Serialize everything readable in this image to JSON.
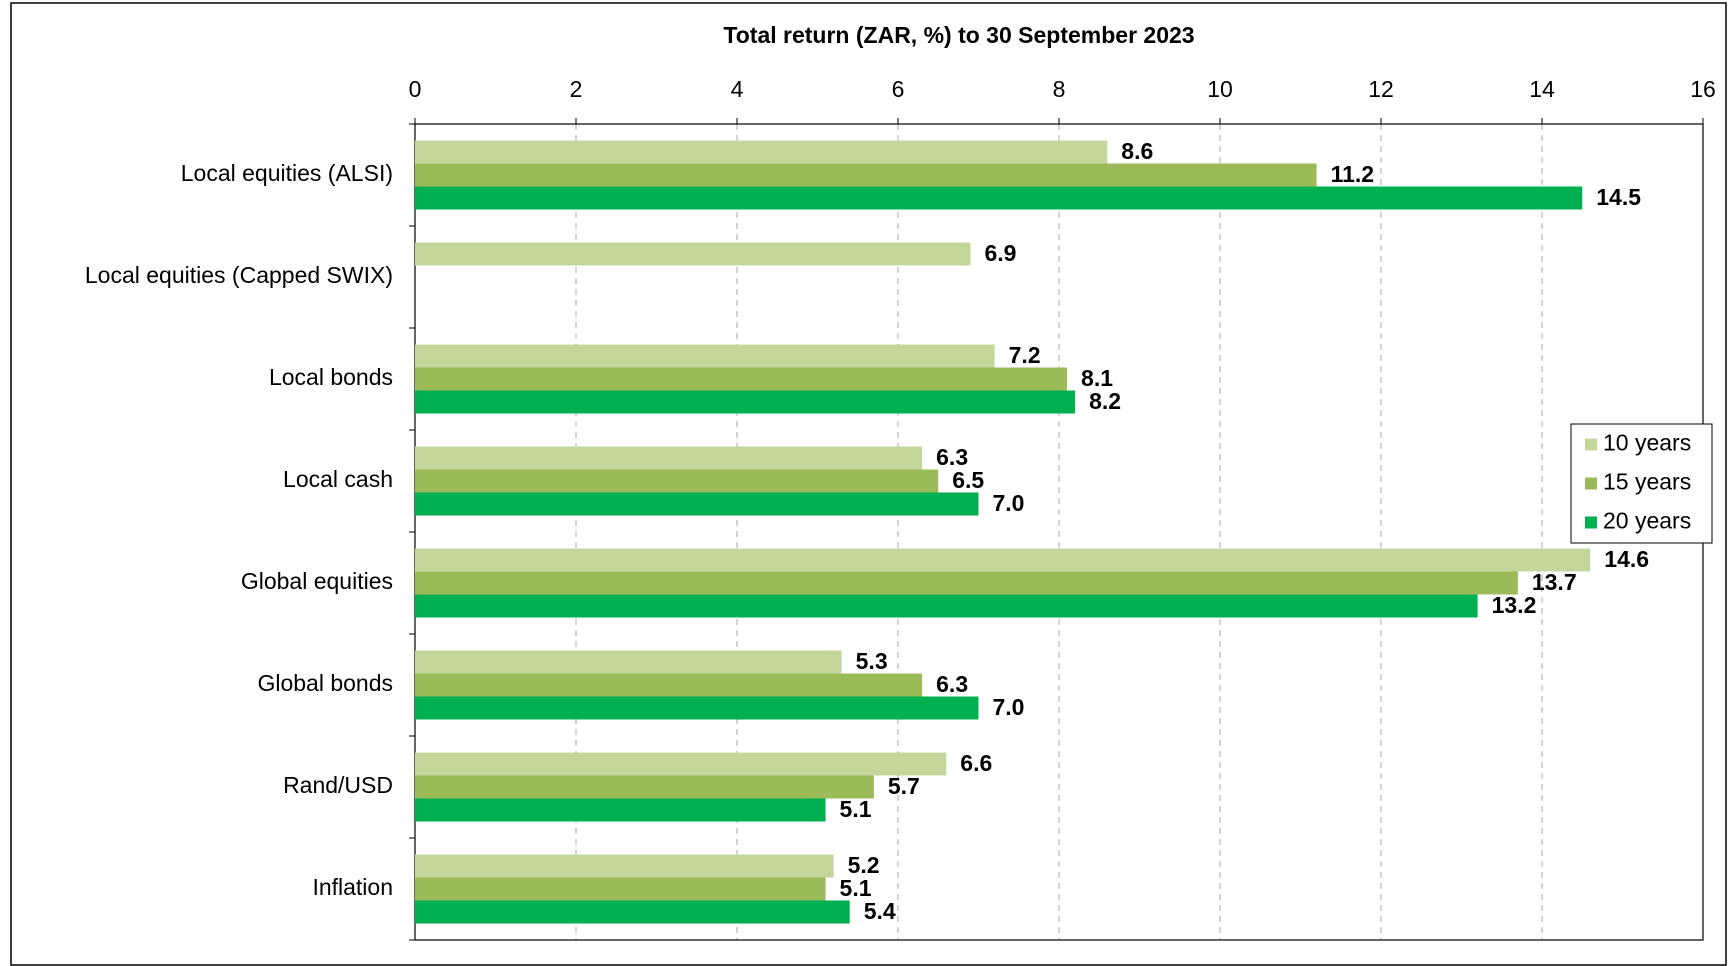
{
  "chart_data": {
    "type": "bar",
    "orientation": "horizontal",
    "title": "Total return (ZAR, %) to 30 September 2023",
    "categories": [
      "Local equities (ALSI)",
      "Local equities (Capped SWIX)",
      "Local bonds",
      "Local cash",
      "Global equities",
      "Global bonds",
      "Rand/USD",
      "Inflation"
    ],
    "series": [
      {
        "name": "10 years",
        "color": "#c4d79b",
        "values": [
          8.6,
          6.9,
          7.2,
          6.3,
          14.6,
          5.3,
          6.6,
          5.2
        ],
        "value_labels": [
          "8.6",
          "6.9",
          "7.2",
          "6.3",
          "14.6",
          "5.3",
          "6.6",
          "5.2"
        ]
      },
      {
        "name": "15 years",
        "color": "#9bbb59",
        "values": [
          11.2,
          null,
          8.1,
          6.5,
          13.7,
          6.3,
          5.7,
          5.1
        ],
        "value_labels": [
          "11.2",
          null,
          "8.1",
          "6.5",
          "13.7",
          "6.3",
          "5.7",
          "5.1"
        ]
      },
      {
        "name": "20 years",
        "color": "#00b050",
        "values": [
          14.5,
          null,
          8.2,
          7.0,
          13.2,
          7.0,
          5.1,
          5.4
        ],
        "value_labels": [
          "14.5",
          null,
          "8.2",
          "7.0",
          "13.2",
          "7.0",
          "5.1",
          "5.4"
        ]
      }
    ],
    "xlim": [
      0,
      16
    ],
    "xticks": [
      0,
      2,
      4,
      6,
      8,
      10,
      12,
      14,
      16
    ],
    "grid": true,
    "legend_position": "right"
  }
}
